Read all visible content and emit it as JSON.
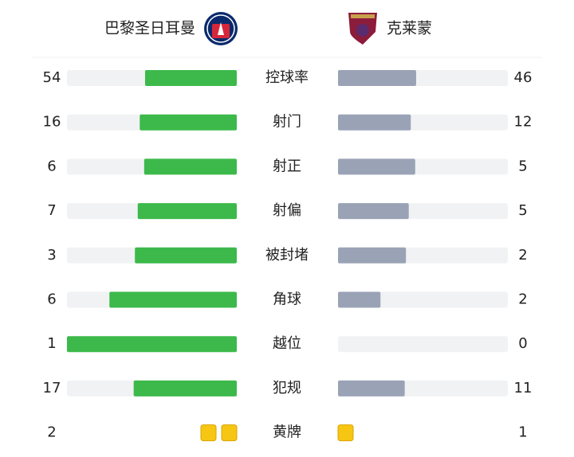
{
  "header": {
    "home": "巴黎圣日耳曼",
    "away": "克莱蒙"
  },
  "rows": [
    {
      "label": "控球率",
      "home": 54,
      "away": 46
    },
    {
      "label": "射门",
      "home": 16,
      "away": 12
    },
    {
      "label": "射正",
      "home": 6,
      "away": 5
    },
    {
      "label": "射偏",
      "home": 7,
      "away": 5
    },
    {
      "label": "被封堵",
      "home": 3,
      "away": 2
    },
    {
      "label": "角球",
      "home": 6,
      "away": 2
    },
    {
      "label": "越位",
      "home": 1,
      "away": 0
    },
    {
      "label": "犯规",
      "home": 17,
      "away": 11
    },
    {
      "label": "黄牌",
      "home": 2,
      "away": 1
    }
  ]
}
